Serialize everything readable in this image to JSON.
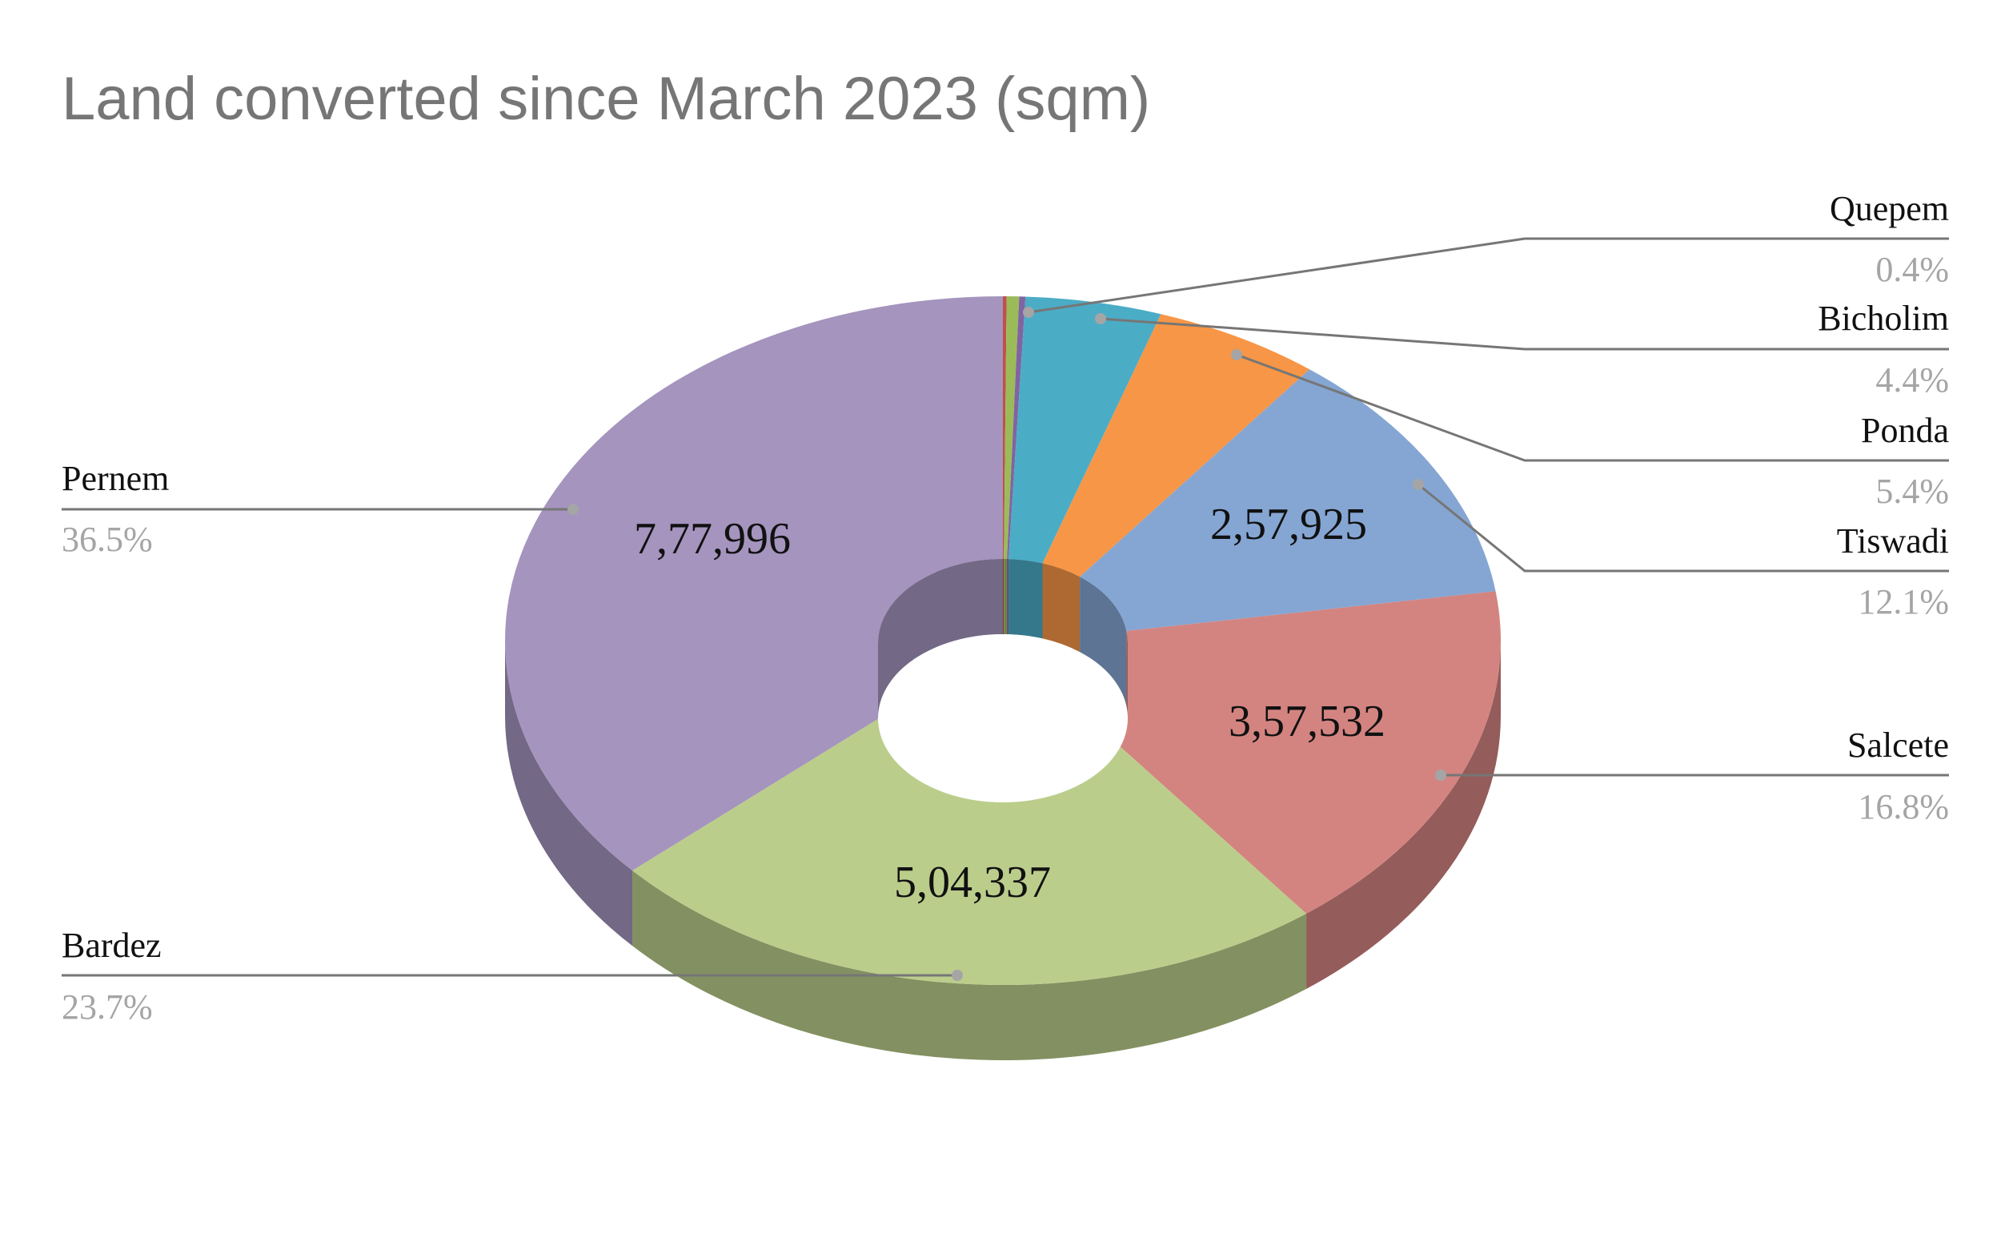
{
  "chart_data": {
    "type": "pie",
    "style": "3d-doughnut",
    "title": "Land converted since March 2023 (sqm)",
    "legend": "none",
    "label_placement": "outside-leader-lines",
    "slices": [
      {
        "name": "Quepem",
        "display_value": "",
        "percent_label": "0.4%",
        "percent": 0.4,
        "color": "#9BBB59"
      },
      {
        "name": "Bicholim",
        "display_value": "",
        "percent_label": "4.4%",
        "percent": 4.4,
        "color": "#4BACC6"
      },
      {
        "name": "Ponda",
        "display_value": "",
        "percent_label": "5.4%",
        "percent": 5.4,
        "color": "#F79646"
      },
      {
        "name": "Tiswadi",
        "display_value": "2,57,925",
        "percent_label": "12.1%",
        "percent": 12.1,
        "color": "#85A6D3"
      },
      {
        "name": "Salcete",
        "display_value": "3,57,532",
        "percent_label": "16.8%",
        "percent": 16.8,
        "color": "#D38481"
      },
      {
        "name": "Bardez",
        "display_value": "5,04,337",
        "percent_label": "23.7%",
        "percent": 23.7,
        "color": "#BBCD8B"
      },
      {
        "name": "Pernem",
        "display_value": "7,77,996",
        "percent_label": "36.5%",
        "percent": 36.5,
        "color": "#A594BE"
      }
    ],
    "unlabeled_slices": [
      {
        "percent": 0.12,
        "color": "#C0504D"
      },
      {
        "percent": 0.2,
        "color": "#8064A2"
      }
    ]
  }
}
